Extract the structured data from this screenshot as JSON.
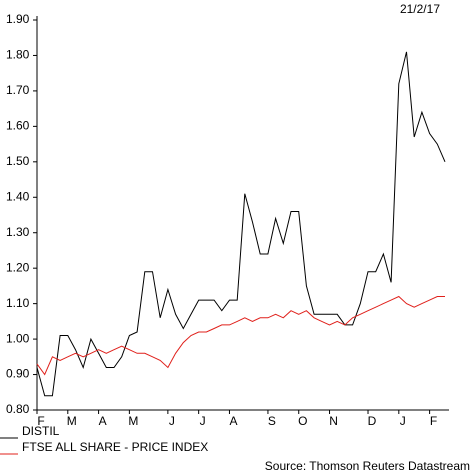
{
  "chart_data": {
    "type": "line",
    "date_label": "21/2/17",
    "source": "Source: Thomson Reuters Datastream",
    "categories": [
      "F",
      null,
      null,
      null,
      "M",
      null,
      null,
      null,
      "A",
      null,
      null,
      null,
      "M",
      null,
      null,
      null,
      null,
      "J",
      null,
      null,
      null,
      "J",
      null,
      null,
      null,
      "A",
      null,
      null,
      null,
      null,
      "S",
      null,
      null,
      null,
      "O",
      null,
      null,
      null,
      "N",
      null,
      null,
      null,
      null,
      "D",
      null,
      null,
      null,
      "J",
      null,
      null,
      null,
      "F",
      null,
      null
    ],
    "series": [
      {
        "name": "DISTIL",
        "color": "#000000",
        "values": [
          0.92,
          0.84,
          0.84,
          1.01,
          1.01,
          0.97,
          0.92,
          1.0,
          0.96,
          0.92,
          0.92,
          0.95,
          1.01,
          1.02,
          1.19,
          1.19,
          1.06,
          1.14,
          1.07,
          1.03,
          1.07,
          1.11,
          1.11,
          1.11,
          1.08,
          1.11,
          1.11,
          1.41,
          1.33,
          1.24,
          1.24,
          1.34,
          1.27,
          1.36,
          1.36,
          1.15,
          1.07,
          1.07,
          1.07,
          1.07,
          1.04,
          1.04,
          1.1,
          1.19,
          1.19,
          1.24,
          1.16,
          1.72,
          1.81,
          1.57,
          1.64,
          1.58,
          1.55,
          1.5
        ]
      },
      {
        "name": "FTSE ALL SHARE - PRICE INDEX",
        "color": "#e0201b",
        "values": [
          0.93,
          0.9,
          0.95,
          0.94,
          0.95,
          0.96,
          0.95,
          0.96,
          0.97,
          0.96,
          0.97,
          0.98,
          0.97,
          0.96,
          0.96,
          0.95,
          0.94,
          0.92,
          0.96,
          0.99,
          1.01,
          1.02,
          1.02,
          1.03,
          1.04,
          1.04,
          1.05,
          1.06,
          1.05,
          1.06,
          1.06,
          1.07,
          1.06,
          1.08,
          1.07,
          1.08,
          1.06,
          1.05,
          1.04,
          1.05,
          1.04,
          1.06,
          1.07,
          1.08,
          1.09,
          1.1,
          1.11,
          1.12,
          1.1,
          1.09,
          1.1,
          1.11,
          1.12,
          1.12
        ]
      }
    ],
    "ylim": [
      0.8,
      1.9
    ],
    "yticks": [
      {
        "value": 0.8,
        "label": "0.80"
      },
      {
        "value": 0.9,
        "label": "0.90"
      },
      {
        "value": 1.0,
        "label": "1.00"
      },
      {
        "value": 1.1,
        "label": "1.10"
      },
      {
        "value": 1.2,
        "label": "1.20"
      },
      {
        "value": 1.3,
        "label": "1.30"
      },
      {
        "value": 1.4,
        "label": "1.40"
      },
      {
        "value": 1.5,
        "label": "1.50"
      },
      {
        "value": 1.6,
        "label": "1.60"
      },
      {
        "value": 1.7,
        "label": "1.70"
      },
      {
        "value": 1.8,
        "label": "1.80"
      },
      {
        "value": 1.9,
        "label": "1.90"
      }
    ],
    "grid": false
  }
}
